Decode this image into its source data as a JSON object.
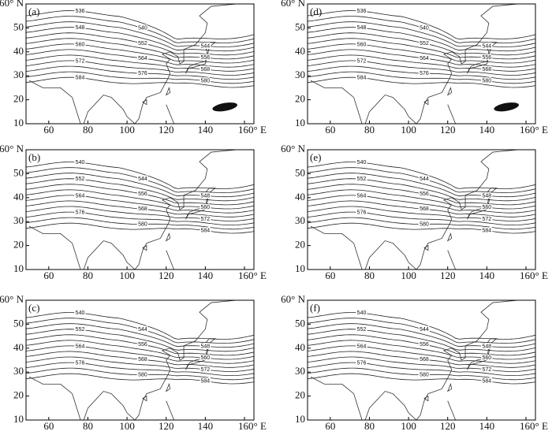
{
  "lat_ticks": [
    {
      "value": 60,
      "label": "60° N"
    },
    50,
    40,
    30,
    20,
    10
  ],
  "lon_ticks": [
    60,
    80,
    100,
    120,
    140,
    {
      "value": 160,
      "label": "160° E"
    }
  ],
  "panels": [
    {
      "label": "(a)",
      "contours": [
        536,
        540,
        544,
        548,
        552,
        556,
        560,
        564,
        568,
        572,
        576,
        580,
        584
      ],
      "shaded_area": true
    },
    {
      "label": "(d)",
      "contours": [
        536,
        540,
        544,
        548,
        552,
        556,
        560,
        564,
        568,
        572,
        576,
        580,
        584
      ],
      "shaded_area": true
    },
    {
      "label": "(b)",
      "contours": [
        540,
        544,
        548,
        552,
        556,
        560,
        564,
        568,
        572,
        576,
        580,
        584
      ],
      "shaded_area": false
    },
    {
      "label": "(e)",
      "contours": [
        540,
        544,
        548,
        552,
        556,
        560,
        564,
        568,
        572,
        576,
        580,
        584
      ],
      "shaded_area": false
    },
    {
      "label": "(c)",
      "contours": [
        540,
        544,
        548,
        552,
        556,
        560,
        564,
        568,
        572,
        576,
        580,
        584
      ],
      "shaded_area": false
    },
    {
      "label": "(f)",
      "contours": [
        540,
        544,
        548,
        552,
        556,
        560,
        564,
        568,
        572,
        576,
        580,
        584
      ],
      "shaded_area": false
    }
  ]
}
